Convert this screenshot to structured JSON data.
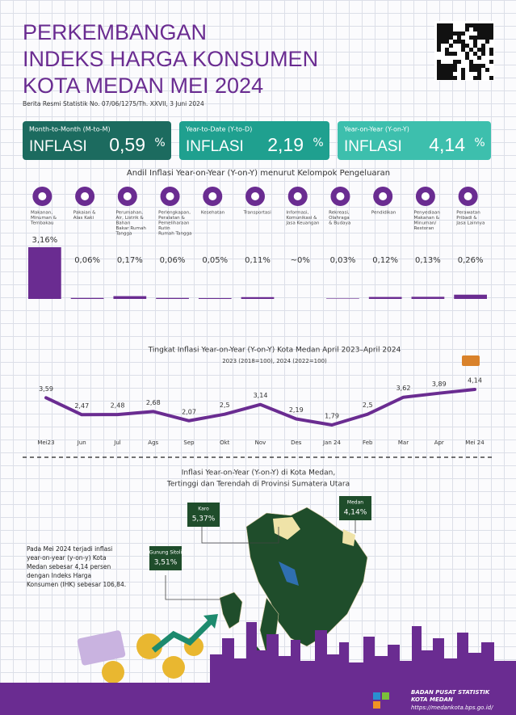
{
  "header": {
    "title": [
      "PERKEMBANGAN",
      "INDEKS HARGA KONSUMEN",
      "KOTA MEDAN MEI 2024"
    ],
    "subtitle": "Berita Resmi Statistik No. 07/06/1275/Th. XXVII, 3 Juni 2024"
  },
  "inflation": [
    {
      "label": "Month-to-Month (M-to-M)",
      "name": "INFLASI",
      "value": "0,59",
      "unit": "%",
      "color": "#1c6b5f"
    },
    {
      "label": "Year-to-Date (Y-to-D)",
      "name": "INFLASI",
      "value": "2,19",
      "unit": "%",
      "color": "#1fa08f"
    },
    {
      "label": "Year-on-Year (Y-on-Y)",
      "name": "INFLASI",
      "value": "4,14",
      "unit": "%",
      "color": "#3dbfad"
    }
  ],
  "chart_data": [
    {
      "type": "bar",
      "title": "Andil Inflasi Year-on-Year (Y-on-Y) menurut Kelompok Pengeluaran",
      "categories": [
        [
          "Makanan,",
          "Minuman &",
          "Tembakau"
        ],
        [
          "Pakaian &",
          "Alas Kaki"
        ],
        [
          "Perumahan,",
          "Air, Listrik &",
          "Bahan",
          "Bakar Rumah",
          "Tangga"
        ],
        [
          "Perlengkapan,",
          "Peralatan &",
          "Pemeliharaan",
          "Rutin",
          "Rumah Tangga"
        ],
        [
          "Kesehatan"
        ],
        [
          "Transportasi"
        ],
        [
          "Informasi,",
          "Komunikasi &",
          "Jasa Keuangan"
        ],
        [
          "Rekreasi,",
          "Olahraga",
          "& Budaya"
        ],
        [
          "Pendidikan"
        ],
        [
          "Penyediaan",
          "Makanan &",
          "Minuman/",
          "Restoran"
        ],
        [
          "Perawatan",
          "Pribadi &",
          "Jasa Lainnya"
        ]
      ],
      "values": [
        3.16,
        0.06,
        0.17,
        0.06,
        0.05,
        0.11,
        0,
        0.03,
        0.12,
        0.13,
        0.26
      ],
      "value_labels": [
        "3,16%",
        "0,06%",
        "0,17%",
        "0,06%",
        "0,05%",
        "0,11%",
        "~0%",
        "0,03%",
        "0,12%",
        "0,13%",
        "0,26%"
      ],
      "color": "#6a2c91"
    },
    {
      "type": "line",
      "title": "Tingkat Inflasi Year-on-Year (Y-on-Y) Kota Medan April 2023–April 2024",
      "subtitle": "2023 (2018=100), 2024 (2022=100)",
      "categories": [
        "Mei23",
        "Jun",
        "Jul",
        "Ags",
        "Sep",
        "Okt",
        "Nov",
        "Des",
        "Jan 24",
        "Feb",
        "Mar",
        "Apr",
        "Mei 24"
      ],
      "values": [
        3.59,
        2.47,
        2.48,
        2.68,
        2.07,
        2.5,
        3.14,
        2.19,
        1.79,
        2.5,
        3.62,
        3.89,
        4.14
      ],
      "value_labels": [
        "3,59",
        "2,47",
        "2,48",
        "2,68",
        "2,07",
        "2,5",
        "3,14",
        "2,19",
        "1,79",
        "2,5",
        "3,62",
        "3,89",
        "4,14"
      ],
      "color": "#6a2c91"
    }
  ],
  "regional": {
    "title": [
      "Inflasi Year-on-Year (Y-on-Y) di Kota Medan,",
      "Tertinggi dan Terendah di Provinsi Sumatera Utara"
    ],
    "places": [
      {
        "name": "Karo",
        "value": "5,37%"
      },
      {
        "name": "Medan",
        "value": "4,14%"
      },
      {
        "name": "Gunung Sitoli",
        "value": "3,51%"
      }
    ],
    "note": [
      "Pada Mei 2024 terjadi inflasi",
      "year-on-year (y-on-y) Kota",
      "Medan sebesar 4,14 persen",
      "dengan Indeks Harga",
      "Konsumen (IHK) sebesar 106,84."
    ]
  },
  "footer": {
    "agency": [
      "BADAN PUSAT STATISTIK",
      "KOTA MEDAN"
    ],
    "url": "https://medankota.bps.go.id/"
  }
}
